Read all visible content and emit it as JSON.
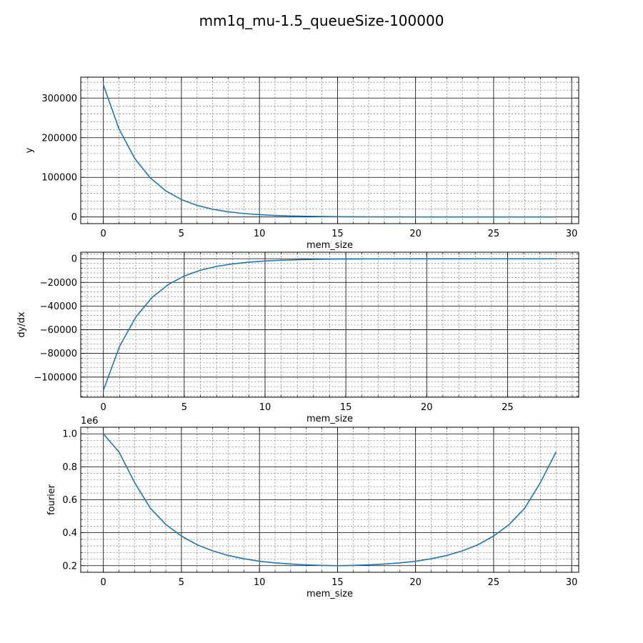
{
  "figure": {
    "title": "mm1q_mu-1.5_queueSize-100000"
  },
  "chart_data": [
    {
      "type": "line",
      "xlabel": "mem_size",
      "ylabel": "y",
      "xlim": [
        -1.45,
        30.45
      ],
      "ylim": [
        -16800,
        352800
      ],
      "xticks": [
        0,
        5,
        10,
        15,
        20,
        25,
        30
      ],
      "yticks": [
        0,
        100000,
        200000,
        300000
      ],
      "ytick_labels": [
        "0",
        "100000",
        "200000",
        "300000"
      ],
      "offset_text": "",
      "grid": true,
      "color": "#1f77b4",
      "x": [
        0,
        1,
        2,
        3,
        4,
        5,
        6,
        7,
        8,
        9,
        10,
        11,
        12,
        13,
        14,
        15,
        16,
        17,
        18,
        19,
        20,
        21,
        22,
        23,
        24,
        25,
        26,
        27,
        28,
        29
      ],
      "y": [
        333333,
        222222,
        148148,
        98765,
        65843,
        43896,
        29264,
        19509,
        13006,
        8671,
        5781,
        3854,
        2569,
        1713,
        1142,
        761,
        507,
        338,
        225,
        150,
        100,
        67,
        45,
        30,
        20,
        13,
        9,
        6,
        4,
        3
      ]
    },
    {
      "type": "line",
      "xlabel": "mem_size",
      "ylabel": "dy/dx",
      "xlim": [
        -1.4,
        29.4
      ],
      "ylim": [
        -117000,
        5500
      ],
      "xticks": [
        0,
        5,
        10,
        15,
        20,
        25
      ],
      "yticks": [
        0,
        -20000,
        -40000,
        -60000,
        -80000,
        -100000
      ],
      "ytick_labels": [
        "0",
        "−20000",
        "−40000",
        "−60000",
        "−80000",
        "−100000"
      ],
      "offset_text": "",
      "grid": true,
      "color": "#1f77b4",
      "x": [
        0,
        1,
        2,
        3,
        4,
        5,
        6,
        7,
        8,
        9,
        10,
        11,
        12,
        13,
        14,
        15,
        16,
        17,
        18,
        19,
        20,
        21,
        22,
        23,
        24,
        25,
        26,
        27,
        28
      ],
      "y": [
        -111111,
        -74074,
        -49383,
        -32922,
        -21947,
        -14632,
        -9755,
        -6503,
        -4335,
        -2890,
        -1927,
        -1285,
        -856,
        -571,
        -381,
        -254,
        -169,
        -113,
        -75,
        -50,
        -33,
        -22,
        -15,
        -10,
        -7,
        -4,
        -3,
        -2,
        -1
      ]
    },
    {
      "type": "line",
      "xlabel": "mem_size",
      "ylabel": "fourier",
      "xlim": [
        -1.45,
        30.45
      ],
      "ylim": [
        0.16,
        1.04
      ],
      "xticks": [
        0,
        5,
        10,
        15,
        20,
        25,
        30
      ],
      "yticks": [
        0.2,
        0.4,
        0.6,
        0.8,
        1.0
      ],
      "ytick_labels": [
        "0.2",
        "0.4",
        "0.6",
        "0.8",
        "1.0"
      ],
      "offset_text": "1e6",
      "grid": true,
      "color": "#1f77b4",
      "x": [
        0,
        1,
        2,
        3,
        4,
        5,
        6,
        7,
        8,
        9,
        10,
        11,
        12,
        13,
        14,
        15,
        16,
        17,
        18,
        19,
        20,
        21,
        22,
        23,
        24,
        25,
        26,
        27,
        28,
        29
      ],
      "y": [
        1.0,
        0.89,
        0.705,
        0.55,
        0.45,
        0.38,
        0.327,
        0.29,
        0.262,
        0.242,
        0.227,
        0.217,
        0.21,
        0.205,
        0.202,
        0.2,
        0.202,
        0.205,
        0.21,
        0.217,
        0.227,
        0.242,
        0.262,
        0.29,
        0.327,
        0.38,
        0.45,
        0.55,
        0.705,
        0.89
      ]
    }
  ]
}
